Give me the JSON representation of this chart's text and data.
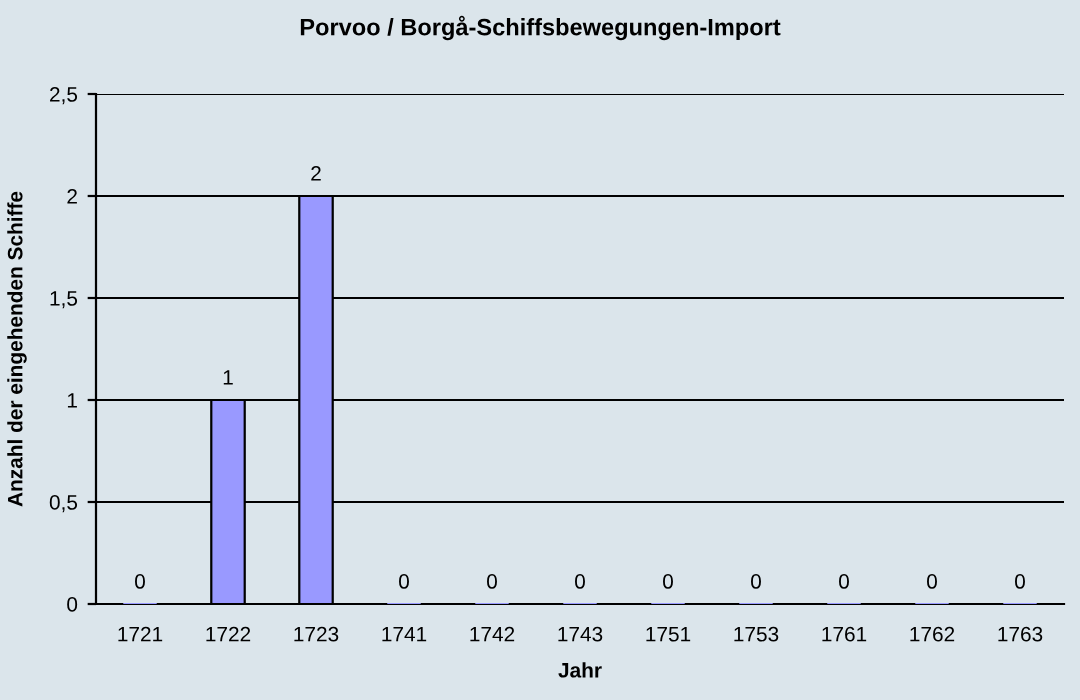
{
  "chart_data": {
    "type": "bar",
    "title": "Porvoo / Borgå-Schiffsbewegungen-Import",
    "xlabel": "Jahr",
    "ylabel": "Anzahl der eingehenden Schiffe",
    "categories": [
      "1721",
      "1722",
      "1723",
      "1741",
      "1742",
      "1743",
      "1751",
      "1753",
      "1761",
      "1762",
      "1763"
    ],
    "values": [
      0,
      1,
      2,
      0,
      0,
      0,
      0,
      0,
      0,
      0,
      0
    ],
    "color": "#9999ff",
    "ylim": [
      0,
      2.5
    ],
    "yticks": [
      0,
      {
        "value": 0.5,
        "label": "0,5"
      },
      1,
      {
        "value": 1.5,
        "label": "1,5"
      },
      2,
      {
        "value": 2.5,
        "label": "2,5"
      }
    ],
    "grid": "y",
    "data_labels": true
  }
}
